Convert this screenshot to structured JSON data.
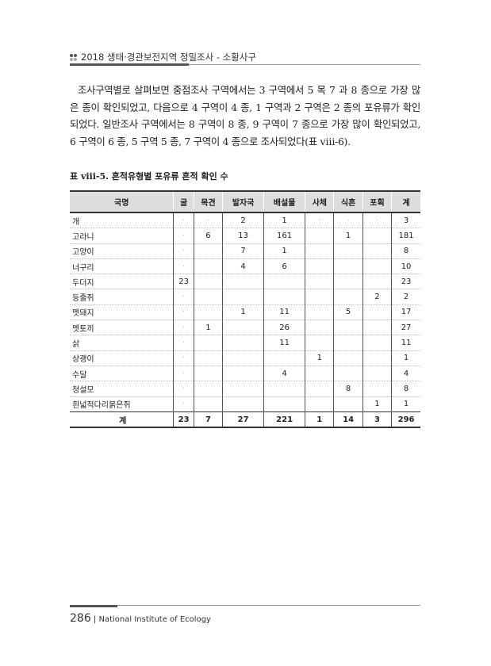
{
  "header": {
    "title": "2018 생태·경관보전지역 정밀조사 - 소황사구"
  },
  "body": {
    "paragraph": "조사구역별로 살펴보면 중점조사 구역에서는 3 구역에서 5 목 7 과 8 종으로 가장 많은 종이 확인되었고, 다음으로 4 구역이 4 종, 1 구역과 2 구역은 2 종의 포유류가 확인되었다. 일반조사 구역에서는 8 구역이 8 종, 9 구역이 7 종으로 가장 많이 확인되었고, 6 구역이 6 종, 5 구역 5 종, 7 구역이 4 종으로 조사되었다(표 ⅷ-6)."
  },
  "table": {
    "caption": "표 ⅷ-5. 흔적유형별 포유류 흔적 확인 수",
    "headers": [
      "국명",
      "굴",
      "목견",
      "발자국",
      "배설물",
      "사체",
      "식흔",
      "포획",
      "계"
    ],
    "rows": [
      [
        "개",
        "·",
        "·",
        "2",
        "1",
        "·",
        "·",
        "·",
        "3"
      ],
      [
        "고라니",
        "·",
        "6",
        "13",
        "161",
        "",
        "1",
        "",
        "181"
      ],
      [
        "고양이",
        "·",
        "",
        "7",
        "1",
        "",
        "",
        "",
        "8"
      ],
      [
        "너구리",
        "·",
        "",
        "4",
        "6",
        "",
        "",
        "",
        "10"
      ],
      [
        "두더지",
        "23",
        "",
        "",
        "",
        "",
        "",
        "",
        "23"
      ],
      [
        "등줄쥐",
        "·",
        "",
        "",
        "",
        "",
        "",
        "2",
        "2"
      ],
      [
        "멧돼지",
        "·",
        "",
        "1",
        "11",
        "",
        "5",
        "",
        "17"
      ],
      [
        "멧토끼",
        "·",
        "1",
        "",
        "26",
        "",
        "",
        "",
        "27"
      ],
      [
        "삵",
        "·",
        "",
        "",
        "11",
        "",
        "",
        "",
        "11"
      ],
      [
        "상괭이",
        "·",
        "",
        "",
        "",
        "1",
        "",
        "",
        "1"
      ],
      [
        "수달",
        "·",
        "",
        "",
        "4",
        "",
        "",
        "",
        "4"
      ],
      [
        "청설모",
        "·",
        "",
        "",
        "",
        "",
        "8",
        "",
        "8"
      ],
      [
        "흰넓적다리붉은쥐",
        "·",
        "",
        "",
        "",
        "",
        "",
        "1",
        "1"
      ]
    ],
    "total": [
      "계",
      "23",
      "7",
      "27",
      "221",
      "1",
      "14",
      "3",
      "296"
    ]
  },
  "footer": {
    "page": "286",
    "sep": "|",
    "org": "National Institute of Ecology"
  }
}
